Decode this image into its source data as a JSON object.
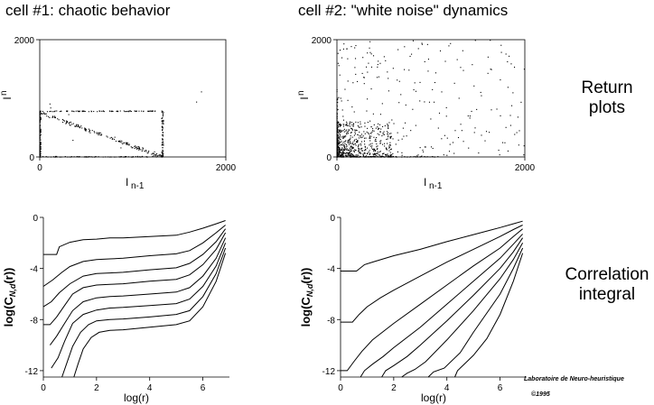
{
  "colors": {
    "background": "#ffffff",
    "ink": "#000000"
  },
  "side_labels": {
    "return_line1": "Return",
    "return_line2": "plots",
    "corr_line1": "Correlation",
    "corr_line2": "integral"
  },
  "credit": {
    "line1": "Laboratoire de Neuro-heuristique",
    "line2": "©1995"
  },
  "chart_data": [
    {
      "id": "return-1",
      "type": "scatter",
      "title": "cell #1: chaotic behavior",
      "xlabel_main": "I",
      "xlabel_sub": "n-1",
      "ylabel_main": "I",
      "ylabel_sub": "n",
      "xlim": [
        0,
        2000
      ],
      "ylim": [
        0,
        2000
      ],
      "xticks": [
        0,
        2000
      ],
      "yticks": [
        0,
        2000
      ],
      "point_groups": [
        {
          "desc": "diagonal band",
          "x": [
            0,
            1320
          ],
          "y": [
            760,
            0
          ],
          "spread": 25,
          "count": 170
        },
        {
          "desc": "horizontal band at 780",
          "x": [
            0,
            1320
          ],
          "y": [
            780,
            780
          ],
          "spread": 6,
          "count": 90
        },
        {
          "desc": "vertical band at 1320",
          "x": [
            1320,
            1320
          ],
          "y": [
            0,
            780
          ],
          "spread": 10,
          "count": 60
        },
        {
          "desc": "y-axis band",
          "x": [
            0,
            0
          ],
          "y": [
            0,
            790
          ],
          "spread": 12,
          "count": 130
        },
        {
          "desc": "x-axis band",
          "x": [
            0,
            1320
          ],
          "y": [
            0,
            0
          ],
          "spread": 10,
          "count": 90
        },
        {
          "desc": "outliers",
          "x": [
            0,
            1800
          ],
          "y": [
            0,
            1200
          ],
          "spread": 0,
          "count": 8
        }
      ]
    },
    {
      "id": "return-2",
      "type": "scatter",
      "title": "cell #2: \"white noise\" dynamics",
      "xlabel_main": "I",
      "xlabel_sub": "n-1",
      "ylabel_main": "I",
      "ylabel_sub": "n",
      "xlim": [
        0,
        2000
      ],
      "ylim": [
        0,
        2000
      ],
      "xticks": [
        0,
        2000
      ],
      "yticks": [
        0,
        2000
      ],
      "point_groups": [
        {
          "desc": "dense cloud near origin",
          "x": [
            0,
            600
          ],
          "y": [
            0,
            600
          ],
          "spread": 0,
          "count": 650,
          "skew": 2.2
        },
        {
          "desc": "sparse spread",
          "x": [
            0,
            2000
          ],
          "y": [
            0,
            2000
          ],
          "spread": 0,
          "count": 260,
          "skew": 1.4
        },
        {
          "desc": "y-axis band",
          "x": [
            0,
            0
          ],
          "y": [
            0,
            1000
          ],
          "spread": 10,
          "count": 60
        },
        {
          "desc": "x-axis band",
          "x": [
            0,
            1100
          ],
          "y": [
            0,
            0
          ],
          "spread": 8,
          "count": 60
        }
      ]
    },
    {
      "id": "corr-1",
      "type": "line",
      "ylabel": "log(C",
      "ylabel_sub": "N,d",
      "ylabel_tail": "(r))",
      "xlabel": "log(r)",
      "xlim": [
        0,
        7
      ],
      "ylim": [
        -12.5,
        0
      ],
      "xticks": [
        0,
        2,
        4,
        6
      ],
      "yticks": [
        0,
        -4,
        -8,
        -12
      ],
      "series": [
        {
          "name": "d1",
          "x": [
            0,
            0.5,
            0.6,
            1,
            1.5,
            2,
            2.5,
            3,
            4,
            5,
            5.5,
            6,
            6.5,
            6.85
          ],
          "y": [
            -2.9,
            -2.9,
            -2.3,
            -1.95,
            -1.75,
            -1.7,
            -1.6,
            -1.6,
            -1.5,
            -1.4,
            -1.15,
            -0.85,
            -0.5,
            -0.25
          ]
        },
        {
          "name": "d2",
          "x": [
            0,
            0.35,
            0.7,
            1,
            1.5,
            2,
            2.5,
            3,
            4,
            5,
            5.5,
            6,
            6.5,
            6.85
          ],
          "y": [
            -5.4,
            -4.9,
            -4.3,
            -3.85,
            -3.45,
            -3.3,
            -3.25,
            -3.2,
            -3.0,
            -2.85,
            -2.6,
            -2.0,
            -1.2,
            -0.6
          ]
        },
        {
          "name": "d3",
          "x": [
            0,
            0.3,
            0.6,
            1,
            1.5,
            2,
            2.5,
            3,
            4,
            5,
            5.5,
            6,
            6.5,
            6.85
          ],
          "y": [
            -7.0,
            -6.6,
            -5.9,
            -5.2,
            -4.6,
            -4.4,
            -4.35,
            -4.3,
            -4.1,
            -3.95,
            -3.6,
            -2.9,
            -1.9,
            -0.9
          ]
        },
        {
          "name": "d4",
          "x": [
            0,
            0.25,
            0.5,
            0.8,
            1.1,
            1.5,
            2,
            2.5,
            3,
            4,
            5,
            5.5,
            6,
            6.5,
            6.85
          ],
          "y": [
            -8.4,
            -8.4,
            -7.8,
            -6.9,
            -6.0,
            -5.5,
            -5.3,
            -5.25,
            -5.2,
            -5.0,
            -4.85,
            -4.5,
            -3.7,
            -2.5,
            -1.2
          ]
        },
        {
          "name": "d5",
          "x": [
            0.25,
            0.5,
            0.8,
            1.1,
            1.5,
            2,
            2.5,
            3,
            4,
            5,
            5.5,
            6,
            6.5,
            6.85
          ],
          "y": [
            -10.0,
            -9.3,
            -8.3,
            -7.3,
            -6.6,
            -6.3,
            -6.2,
            -6.15,
            -6.0,
            -5.85,
            -5.5,
            -4.6,
            -3.2,
            -1.6
          ]
        },
        {
          "name": "d6",
          "x": [
            0.3,
            0.55,
            0.8,
            1.1,
            1.5,
            2,
            2.5,
            3,
            4,
            5,
            5.5,
            6,
            6.5,
            6.85
          ],
          "y": [
            -11.8,
            -11.0,
            -9.7,
            -8.3,
            -7.6,
            -7.25,
            -7.1,
            -7.05,
            -6.9,
            -6.75,
            -6.4,
            -5.4,
            -3.8,
            -2.0
          ]
        },
        {
          "name": "d7",
          "x": [
            0.7,
            0.85,
            1.1,
            1.4,
            1.7,
            2,
            2.5,
            3,
            4,
            5,
            5.5,
            6,
            6.5,
            6.85
          ],
          "y": [
            -12.5,
            -11.6,
            -10.1,
            -9.0,
            -8.4,
            -8.1,
            -8.0,
            -7.95,
            -7.8,
            -7.6,
            -7.3,
            -6.2,
            -4.4,
            -2.4
          ]
        },
        {
          "name": "d8",
          "x": [
            1.15,
            1.3,
            1.5,
            1.8,
            2.1,
            2.5,
            3,
            4,
            5,
            5.5,
            6,
            6.5,
            6.85
          ],
          "y": [
            -12.5,
            -11.5,
            -10.3,
            -9.4,
            -9.0,
            -8.85,
            -8.8,
            -8.6,
            -8.4,
            -8.1,
            -7.0,
            -5.0,
            -2.8
          ]
        }
      ]
    },
    {
      "id": "corr-2",
      "type": "line",
      "ylabel": "log(C",
      "ylabel_sub": "N,d",
      "ylabel_tail": "(r))",
      "xlabel": "log(r)",
      "xlim": [
        0,
        7
      ],
      "ylim": [
        -12.5,
        0
      ],
      "xticks": [
        0,
        2,
        4,
        6
      ],
      "yticks": [
        0,
        -4,
        -8,
        -12
      ],
      "series": [
        {
          "name": "d1",
          "x": [
            0,
            0.6,
            0.9,
            1.2,
            2,
            3,
            4,
            5,
            6,
            6.5,
            6.85
          ],
          "y": [
            -4.2,
            -4.2,
            -3.7,
            -3.5,
            -3.0,
            -2.5,
            -1.9,
            -1.35,
            -0.8,
            -0.5,
            -0.3
          ]
        },
        {
          "name": "d2",
          "x": [
            0,
            0.45,
            0.7,
            1,
            1.5,
            2,
            3,
            4,
            5,
            6,
            6.5,
            6.85
          ],
          "y": [
            -8.2,
            -8.2,
            -7.6,
            -7.0,
            -6.3,
            -5.7,
            -4.6,
            -3.5,
            -2.5,
            -1.5,
            -0.95,
            -0.6
          ]
        },
        {
          "name": "d3",
          "x": [
            0,
            0.25,
            0.5,
            0.8,
            1.2,
            2,
            3,
            4,
            5,
            6,
            6.5,
            6.85
          ],
          "y": [
            -12.0,
            -12.0,
            -11.3,
            -10.5,
            -9.6,
            -8.3,
            -6.8,
            -5.3,
            -3.8,
            -2.4,
            -1.5,
            -0.9
          ]
        },
        {
          "name": "d4",
          "x": [
            0.75,
            0.9,
            1.2,
            1.6,
            2,
            3,
            4,
            5,
            6,
            6.5,
            6.85
          ],
          "y": [
            -12.5,
            -12.0,
            -11.5,
            -10.9,
            -10.2,
            -8.6,
            -6.8,
            -5.0,
            -3.2,
            -2.1,
            -1.3
          ]
        },
        {
          "name": "d5",
          "x": [
            1.55,
            1.7,
            2,
            2.5,
            3,
            4,
            5,
            6,
            6.5,
            6.85
          ],
          "y": [
            -12.5,
            -12.0,
            -11.6,
            -10.9,
            -10.0,
            -8.1,
            -6.1,
            -4.0,
            -2.7,
            -1.6
          ]
        },
        {
          "name": "d6",
          "x": [
            2.3,
            2.5,
            2.8,
            3.2,
            4,
            5,
            6,
            6.5,
            6.85
          ],
          "y": [
            -12.5,
            -12.2,
            -11.9,
            -11.3,
            -9.6,
            -7.3,
            -4.8,
            -3.3,
            -2.0
          ]
        },
        {
          "name": "d7",
          "x": [
            3.3,
            3.5,
            3.9,
            4.5,
            5,
            6,
            6.5,
            6.85
          ],
          "y": [
            -12.5,
            -12.1,
            -11.8,
            -10.6,
            -9.0,
            -6.0,
            -4.0,
            -2.4
          ]
        },
        {
          "name": "d8",
          "x": [
            4.3,
            4.4,
            4.6,
            5,
            5.5,
            6,
            6.5,
            6.85
          ],
          "y": [
            -12.5,
            -12.0,
            -11.6,
            -10.8,
            -9.5,
            -7.6,
            -5.0,
            -2.8
          ]
        }
      ]
    }
  ]
}
